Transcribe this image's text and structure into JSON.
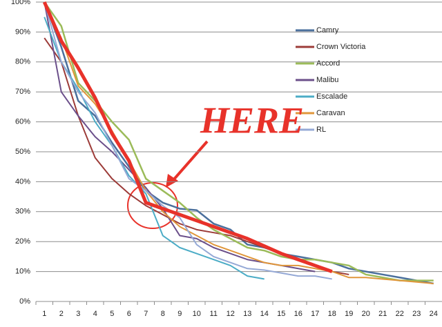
{
  "chart_data": {
    "type": "line",
    "categories": [
      "1",
      "2",
      "3",
      "4",
      "5",
      "6",
      "7",
      "8",
      "9",
      "10",
      "11",
      "12",
      "13",
      "14",
      "15",
      "16",
      "17",
      "18",
      "19",
      "20",
      "21",
      "22",
      "23",
      "24"
    ],
    "ylim": [
      0,
      100
    ],
    "yticks": [
      {
        "value": 0,
        "label": "0%"
      },
      {
        "value": 10,
        "label": "10%"
      },
      {
        "value": 20,
        "label": "20%"
      },
      {
        "value": 30,
        "label": "30%"
      },
      {
        "value": 40,
        "label": "40%"
      },
      {
        "value": 50,
        "label": "50%"
      },
      {
        "value": 60,
        "label": "60%"
      },
      {
        "value": 70,
        "label": "70%"
      },
      {
        "value": 80,
        "label": "80%"
      },
      {
        "value": 90,
        "label": "90%"
      },
      {
        "value": 100,
        "label": "100%"
      }
    ],
    "grid": true,
    "legend": "right",
    "annotation": "HERE",
    "series": [
      {
        "name": "Camry",
        "color": "#4a6f9c",
        "width": 2.5,
        "values": [
          100,
          85,
          67,
          62,
          53,
          45,
          37,
          33,
          31,
          30.5,
          26,
          24,
          19,
          18,
          16,
          15,
          14,
          13,
          11,
          10,
          9,
          8,
          7,
          6
        ]
      },
      {
        "name": "Crown Victoria",
        "color": "#9c3b38",
        "width": 2,
        "values": [
          88,
          80,
          62,
          48,
          41,
          36,
          32,
          29,
          26,
          24,
          23,
          22,
          20,
          18,
          16,
          14,
          12,
          10,
          9,
          null,
          null,
          null,
          null,
          null
        ]
      },
      {
        "name": "Accord",
        "color": "#9bbb59",
        "width": 2.5,
        "values": [
          100,
          92,
          73,
          67,
          60,
          54,
          41,
          37,
          33,
          28,
          24,
          21,
          18,
          17,
          15,
          14,
          14,
          13,
          12,
          9,
          8,
          7,
          7,
          7
        ]
      },
      {
        "name": "Malibu",
        "color": "#6b4f8a",
        "width": 2,
        "values": [
          100,
          70,
          62,
          55,
          50,
          44,
          38,
          31,
          22,
          21,
          18,
          16,
          14,
          13,
          12,
          11,
          10,
          null,
          null,
          null,
          null,
          null,
          null,
          null
        ]
      },
      {
        "name": "Escalade",
        "color": "#4bacc6",
        "width": 2,
        "values": [
          95,
          80,
          71,
          60,
          52,
          42,
          36,
          22,
          18,
          16,
          14,
          12,
          8.5,
          7.5,
          null,
          null,
          null,
          null,
          null,
          null,
          null,
          null,
          null,
          null
        ]
      },
      {
        "name": "Caravan",
        "color": "#e0963a",
        "width": 2,
        "values": [
          100,
          88,
          72,
          66,
          57,
          47,
          37,
          30,
          25,
          22,
          19,
          17,
          15,
          13,
          12,
          12,
          11,
          10,
          8,
          8,
          7.5,
          7,
          6.5,
          6
        ]
      },
      {
        "name": "RL",
        "color": "#95a9d6",
        "width": 2,
        "values": [
          100,
          80,
          70,
          63,
          52,
          41,
          37,
          32,
          28,
          19,
          15,
          13,
          11,
          10.5,
          9.5,
          8.5,
          8.5,
          7.5,
          null,
          null,
          null,
          null,
          null,
          null
        ]
      },
      {
        "color": "#e8322a",
        "width": 5,
        "values": [
          100,
          87,
          78,
          68,
          56,
          47,
          33,
          31,
          29,
          27,
          25,
          23,
          21,
          18.5,
          16,
          14,
          12,
          10,
          null,
          null,
          null,
          null,
          null,
          null
        ]
      }
    ]
  }
}
